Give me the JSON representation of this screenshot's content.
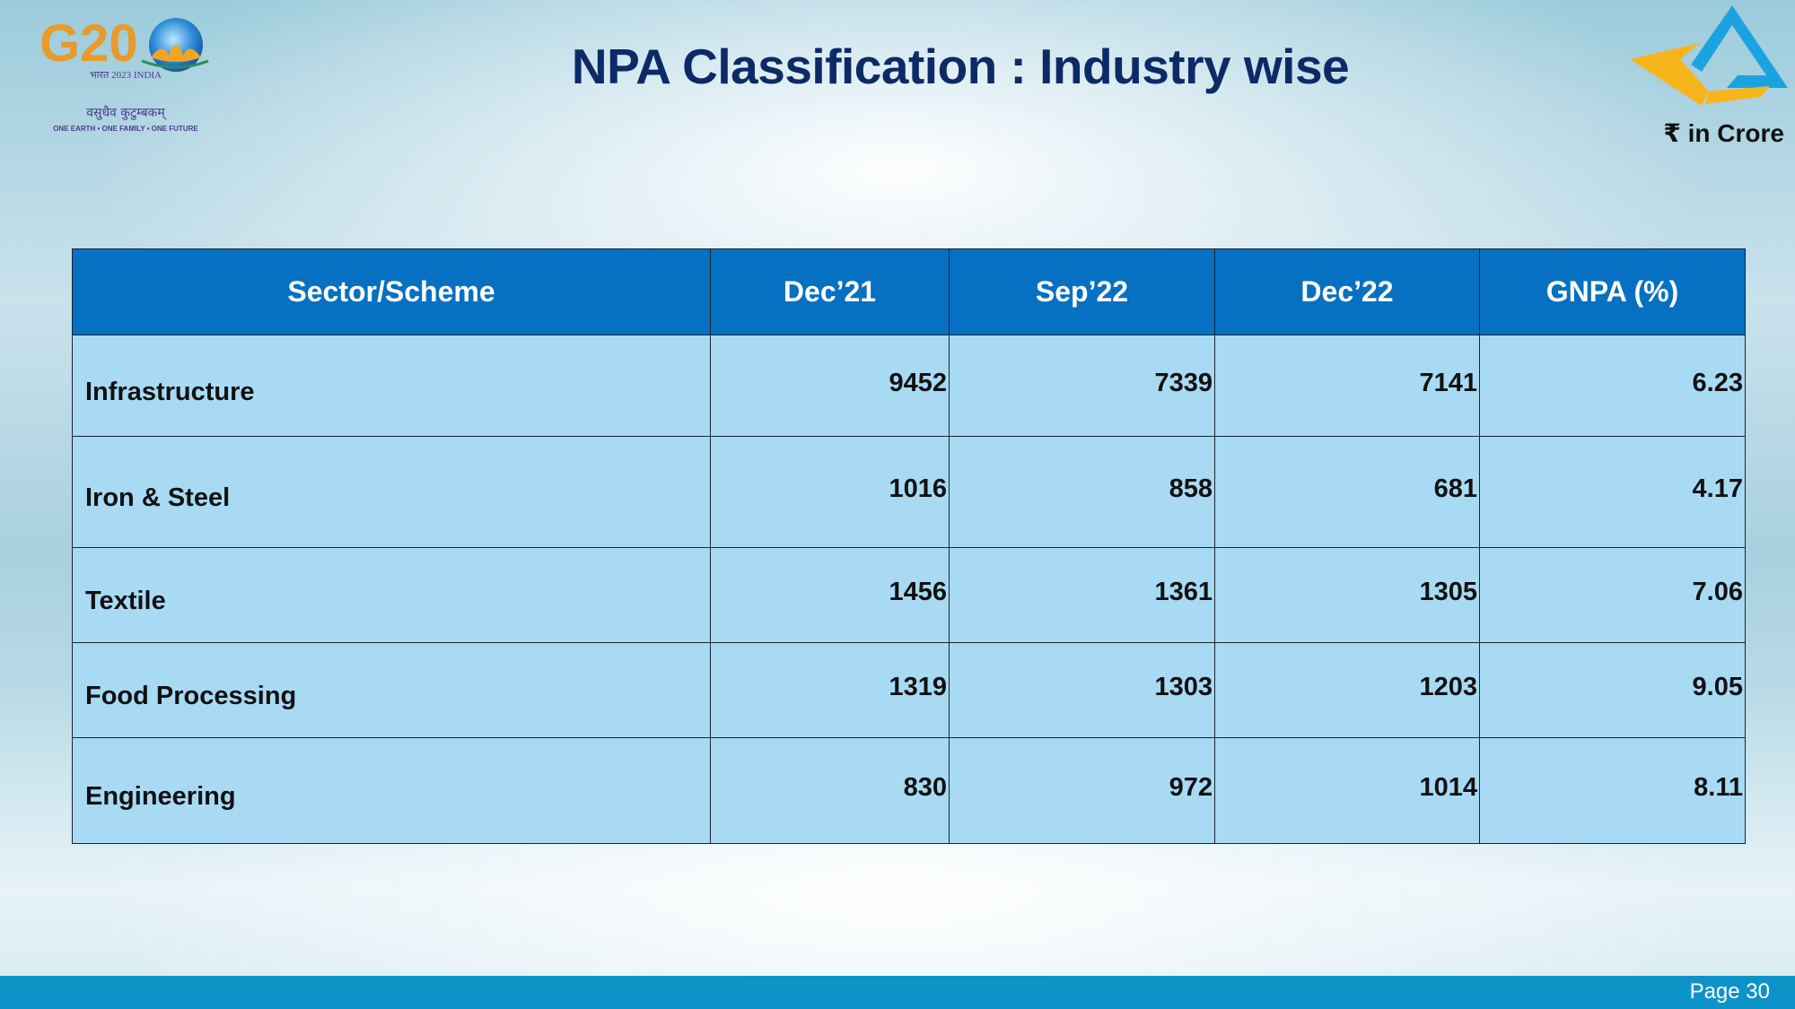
{
  "header": {
    "title": "NPA Classification : Industry wise",
    "unit_note": "₹ in Crore",
    "g20_logo": {
      "text": "G20",
      "subtitle": "भारत 2023 INDIA",
      "motto_hindi": "वसुधैव कुटुम्बकम्",
      "motto_english": "ONE EARTH • ONE FAMILY • ONE FUTURE"
    },
    "right_logo_icon": "triangle-arrow-logo-icon"
  },
  "table": {
    "columns": [
      "Sector/Scheme",
      "Dec’21",
      "Sep’22",
      "Dec’22",
      "GNPA (%)"
    ],
    "rows": [
      {
        "sector": "Infrastructure",
        "dec21": "9452",
        "sep22": "7339",
        "dec22": "7141",
        "gnpa": "6.23"
      },
      {
        "sector": "Iron & Steel",
        "dec21": "1016",
        "sep22": "858",
        "dec22": "681",
        "gnpa": "4.17"
      },
      {
        "sector": "Textile",
        "dec21": "1456",
        "sep22": "1361",
        "dec22": "1305",
        "gnpa": "7.06"
      },
      {
        "sector": "Food Processing",
        "dec21": "1319",
        "sep22": "1303",
        "dec22": "1203",
        "gnpa": "9.05"
      },
      {
        "sector": "Engineering",
        "dec21": "830",
        "sep22": "972",
        "dec22": "1014",
        "gnpa": "8.11"
      }
    ]
  },
  "footer": {
    "page_label": "Page 30"
  },
  "colors": {
    "title": "#0d2a67",
    "header_fill": "#0670c2",
    "row_fill": "#a8daf4",
    "footer_bar": "#0e93c9"
  }
}
